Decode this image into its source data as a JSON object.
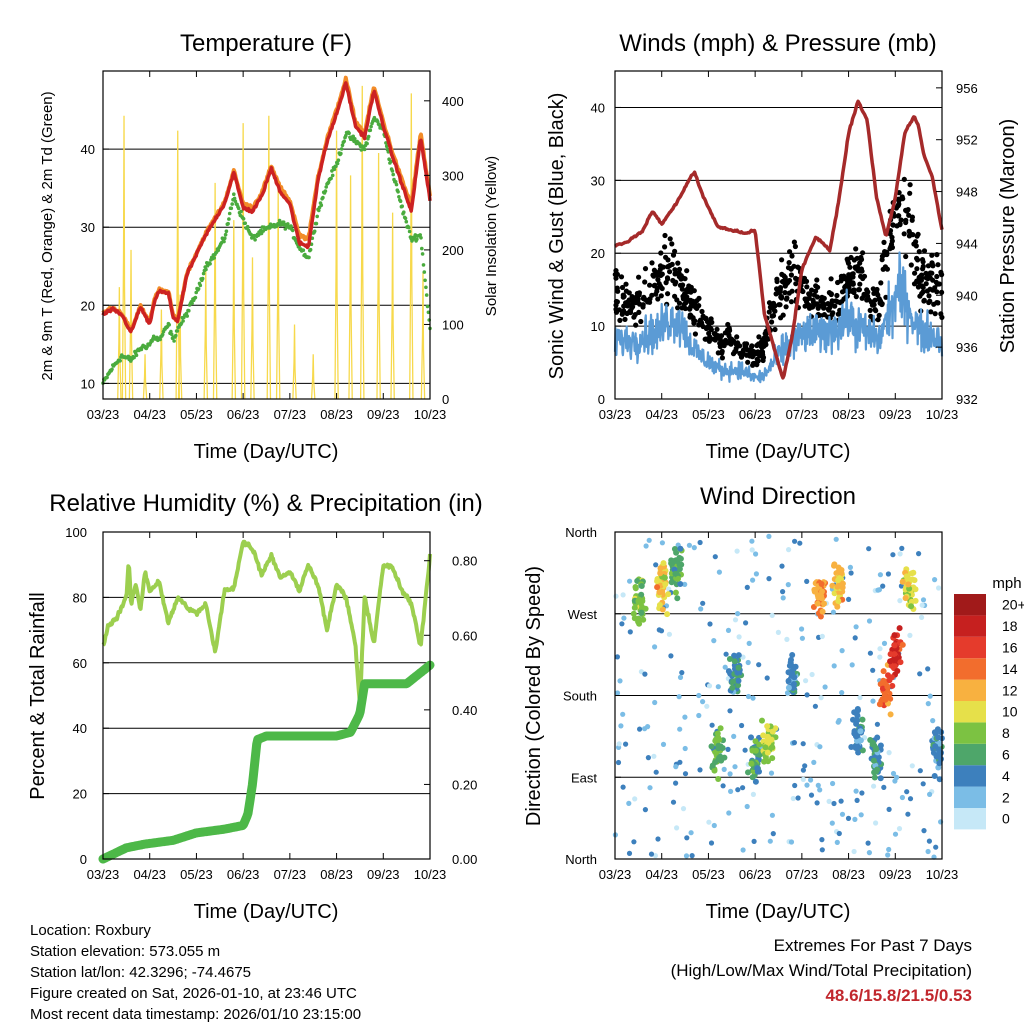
{
  "colors": {
    "temp_red": "#cc2222",
    "temp_orange": "#f28c28",
    "dew_green": "#4aab3e",
    "solar_yellow": "#f7d94c",
    "gust_black": "#000000",
    "wind_blue": "#5b9bd5",
    "pressure_maroon": "#a52a2a",
    "rh_lightgreen": "#9ccf4f",
    "precip_green": "#4db848",
    "extremes_red": "#c1272d"
  },
  "info": {
    "location": "Location: Roxbury",
    "elevation": "Station elevation: 573.055 m",
    "latlon": "Station lat/lon: 42.3296; -74.4675",
    "created": "Figure created on Sat, 2026-01-10, at 23:46 UTC",
    "recent": "Most recent data timestamp: 2026/01/10 23:15:00"
  },
  "extremes": {
    "title": "Extremes For Past 7 Days",
    "subtitle": "(High/Low/Max Wind/Total Precipitation)",
    "values": "48.6/15.8/21.5/0.53"
  },
  "chart_data": [
    {
      "id": "temperature",
      "type": "line",
      "title": "Temperature (F)",
      "xlabel": "Time (Day/UTC)",
      "ylabel": "2m & 9m T (Red, Orange) & 2m Td (Green)",
      "y2label": "Solar Insolation (Yellow)",
      "x_ticks": [
        "03/23",
        "04/23",
        "05/23",
        "06/23",
        "07/23",
        "08/23",
        "09/23",
        "10/23"
      ],
      "ylim": [
        8,
        50
      ],
      "y_ticks": [
        10,
        20,
        30,
        40
      ],
      "y2lim": [
        0,
        440
      ],
      "y2_ticks": [
        0,
        100,
        200,
        300,
        400
      ],
      "x": [
        0,
        0.2,
        0.4,
        0.6,
        0.8,
        1.0,
        1.1,
        1.2,
        1.4,
        1.5,
        1.6,
        1.8,
        2.0,
        2.2,
        2.4,
        2.6,
        2.8,
        3.0,
        3.2,
        3.4,
        3.6,
        3.8,
        4.0,
        4.2,
        4.4,
        4.6,
        4.8,
        5.0,
        5.2,
        5.4,
        5.6,
        5.8,
        6.0,
        6.2,
        6.4,
        6.6,
        6.8,
        7.0
      ],
      "series": [
        {
          "name": "2m T",
          "values": [
            18.8,
            19.5,
            18.8,
            16.5,
            19.8,
            17.5,
            20.5,
            21.8,
            21.5,
            18.5,
            18.0,
            24.0,
            26.5,
            29.0,
            31.0,
            33.0,
            37.0,
            32.5,
            32.0,
            34.0,
            37.5,
            34.5,
            33.0,
            28.0,
            27.5,
            36.0,
            41.0,
            44.5,
            48.5,
            43.0,
            41.5,
            47.5,
            43.0,
            39.0,
            35.5,
            32.0,
            41.5,
            33.5
          ]
        },
        {
          "name": "9m T",
          "values": [
            19.0,
            19.7,
            19.0,
            16.7,
            20.0,
            17.7,
            20.7,
            22.0,
            21.7,
            18.7,
            18.2,
            24.2,
            26.7,
            29.2,
            31.2,
            33.2,
            37.2,
            33.0,
            32.5,
            34.4,
            37.8,
            35.0,
            33.4,
            29.0,
            28.5,
            36.4,
            41.4,
            45.0,
            49.0,
            43.5,
            42.0,
            48.0,
            43.5,
            39.5,
            36.0,
            32.8,
            42.0,
            34.0
          ]
        },
        {
          "name": "2m Td",
          "values": [
            10.0,
            12.0,
            13.5,
            13.0,
            14.5,
            15.0,
            16.0,
            15.5,
            17.5,
            15.5,
            17.0,
            19.0,
            21.5,
            25.0,
            26.5,
            28.5,
            34.0,
            31.0,
            28.5,
            29.5,
            30.0,
            30.5,
            30.0,
            27.5,
            26.0,
            32.0,
            35.5,
            38.0,
            42.0,
            41.0,
            40.0,
            44.0,
            42.5,
            37.0,
            32.5,
            28.5,
            29.0,
            17.0
          ]
        }
      ],
      "solar": {
        "day_peaks": [
          0.35,
          0.45,
          0.6,
          0.9,
          1.25,
          1.6,
          1.65,
          2.2,
          2.4,
          2.8,
          3.0,
          3.2,
          3.55,
          3.75,
          4.1,
          4.5,
          5.0,
          5.3,
          5.55,
          5.9,
          6.2,
          6.6,
          6.85
        ],
        "peak_values": [
          150,
          380,
          200,
          60,
          120,
          360,
          140,
          180,
          290,
          240,
          370,
          190,
          380,
          280,
          100,
          60,
          360,
          300,
          420,
          330,
          250,
          410,
          170
        ]
      }
    },
    {
      "id": "winds",
      "type": "scatter",
      "title": "Winds (mph) & Pressure (mb)",
      "xlabel": "Time (Day/UTC)",
      "ylabel": "Sonic Wind & Gust (Blue, Black)",
      "y2label": "Station Pressure (Maroon)",
      "x_ticks": [
        "03/23",
        "04/23",
        "05/23",
        "06/23",
        "07/23",
        "08/23",
        "09/23",
        "10/23"
      ],
      "ylim": [
        0,
        45
      ],
      "y_ticks": [
        0,
        10,
        20,
        30,
        40
      ],
      "y2lim": [
        932,
        957.3
      ],
      "y2_ticks": [
        932,
        936,
        940,
        944,
        948,
        952,
        956
      ],
      "pressure": {
        "x": [
          0,
          0.3,
          0.6,
          0.8,
          1.0,
          1.3,
          1.6,
          1.7,
          1.9,
          2.2,
          2.5,
          2.8,
          3.0,
          3.2,
          3.6,
          3.8,
          4.0,
          4.3,
          4.6,
          4.8,
          5.0,
          5.2,
          5.4,
          5.6,
          5.8,
          6.0,
          6.2,
          6.4,
          6.5,
          6.6,
          6.8,
          7.0
        ],
        "values": [
          943.8,
          944.2,
          945.0,
          946.5,
          945.5,
          947.0,
          949.0,
          949.5,
          947.5,
          945.3,
          945.0,
          944.8,
          945.0,
          938.5,
          933.5,
          937.0,
          942.0,
          944.5,
          943.5,
          947.5,
          952.5,
          955.0,
          953.5,
          947.5,
          944.5,
          947.5,
          952.5,
          953.8,
          953.0,
          951.0,
          949.0,
          945.0
        ]
      },
      "wind_mean_profile": [
        8,
        8,
        8,
        9,
        9,
        11,
        11,
        8,
        6,
        5,
        4,
        4,
        4,
        3,
        3,
        5,
        7,
        8,
        9,
        9,
        9,
        10,
        11,
        10,
        9,
        8,
        12,
        15,
        12,
        9,
        9,
        8
      ],
      "gust_mean_profile": [
        14,
        13,
        13,
        15,
        16,
        18,
        17,
        14,
        11,
        9,
        8,
        8,
        7,
        6,
        7,
        12,
        16,
        17,
        14,
        14,
        13,
        13,
        16,
        17,
        15,
        13,
        22,
        28,
        24,
        16,
        16,
        15
      ]
    },
    {
      "id": "humidity",
      "type": "line",
      "title": "Relative Humidity (%) & Precipitation (in)",
      "xlabel": "Time (Day/UTC)",
      "ylabel": "Percent & Total Rainfall",
      "x_ticks": [
        "03/23",
        "04/23",
        "05/23",
        "06/23",
        "07/23",
        "08/23",
        "09/23",
        "10/23"
      ],
      "ylim": [
        0,
        100
      ],
      "y_ticks": [
        0,
        20,
        40,
        60,
        80,
        100
      ],
      "y2lim": [
        0,
        0.877
      ],
      "y2_ticks": [
        "0.00",
        "0.20",
        "0.40",
        "0.60",
        "0.80"
      ],
      "series": [
        {
          "name": "RH",
          "x": [
            0,
            0.1,
            0.3,
            0.5,
            0.55,
            0.6,
            0.7,
            0.8,
            0.9,
            1.0,
            1.2,
            1.4,
            1.6,
            1.8,
            2.0,
            2.2,
            2.4,
            2.6,
            2.8,
            3.0,
            3.2,
            3.4,
            3.6,
            3.8,
            4.0,
            4.2,
            4.4,
            4.6,
            4.8,
            5.0,
            5.2,
            5.4,
            5.5,
            5.6,
            5.8,
            6.0,
            6.2,
            6.4,
            6.6,
            6.8,
            7.0
          ],
          "values": [
            65,
            71,
            74,
            80,
            91,
            78,
            84,
            76,
            88,
            82,
            85,
            72,
            80,
            77,
            75,
            78,
            63,
            82,
            83,
            97,
            95,
            87,
            93,
            86,
            88,
            82,
            90,
            84,
            70,
            84,
            80,
            66,
            47,
            80,
            66,
            90,
            89,
            82,
            78,
            65,
            93
          ]
        },
        {
          "name": "Precip",
          "x": [
            0,
            0.5,
            0.9,
            1.5,
            2.0,
            2.6,
            3.0,
            3.1,
            3.2,
            3.3,
            3.5,
            4.0,
            4.5,
            5.0,
            5.3,
            5.5,
            5.6,
            6.0,
            6.5,
            7.0
          ],
          "values": [
            0,
            0.03,
            0.04,
            0.05,
            0.07,
            0.08,
            0.09,
            0.12,
            0.2,
            0.32,
            0.33,
            0.33,
            0.33,
            0.33,
            0.34,
            0.39,
            0.47,
            0.47,
            0.47,
            0.52
          ]
        }
      ]
    },
    {
      "id": "direction",
      "type": "scatter",
      "title": "Wind Direction",
      "xlabel": "Time (Day/UTC)",
      "ylabel": "Direction (Colored By Speed)",
      "x_ticks": [
        "03/23",
        "04/23",
        "05/23",
        "06/23",
        "07/23",
        "08/23",
        "09/23",
        "10/23"
      ],
      "y_ticks": [
        "North",
        "East",
        "South",
        "West",
        "North"
      ],
      "y_values": [
        0,
        90,
        180,
        270,
        360
      ],
      "legend_title": "mph",
      "legend_labels": [
        "0",
        "2",
        "4",
        "6",
        "8",
        "10",
        "12",
        "14",
        "16",
        "18",
        "20+"
      ],
      "legend_colors": [
        "#c6e8f7",
        "#7bbde6",
        "#3d80bd",
        "#4ea66a",
        "#7cc242",
        "#e6e04a",
        "#f8b140",
        "#f26d2d",
        "#e53b2c",
        "#c6201f",
        "#a11a1a"
      ],
      "clusters": [
        {
          "x": 0.5,
          "dir": 285,
          "spd": 8
        },
        {
          "x": 1.0,
          "dir": 300,
          "spd": 11
        },
        {
          "x": 1.3,
          "dir": 320,
          "spd": 6
        },
        {
          "x": 2.2,
          "dir": 115,
          "spd": 7
        },
        {
          "x": 2.6,
          "dir": 200,
          "spd": 5
        },
        {
          "x": 3.0,
          "dir": 110,
          "spd": 6
        },
        {
          "x": 3.3,
          "dir": 130,
          "spd": 9
        },
        {
          "x": 3.8,
          "dir": 200,
          "spd": 4
        },
        {
          "x": 4.4,
          "dir": 290,
          "spd": 13
        },
        {
          "x": 4.8,
          "dir": 300,
          "spd": 11
        },
        {
          "x": 5.2,
          "dir": 140,
          "spd": 4
        },
        {
          "x": 5.6,
          "dir": 110,
          "spd": 5
        },
        {
          "x": 5.8,
          "dir": 185,
          "spd": 14
        },
        {
          "x": 6.0,
          "dir": 230,
          "spd": 17
        },
        {
          "x": 6.3,
          "dir": 300,
          "spd": 10
        },
        {
          "x": 6.9,
          "dir": 120,
          "spd": 4
        }
      ]
    }
  ]
}
